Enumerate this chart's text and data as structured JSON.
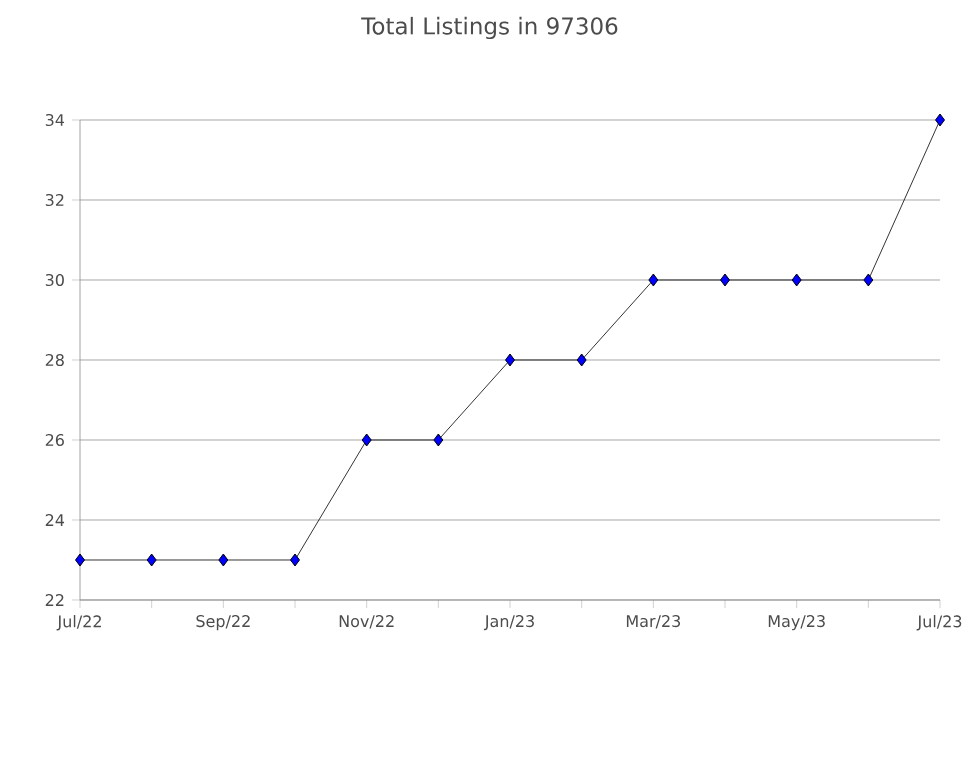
{
  "chart_data": {
    "type": "line",
    "title": "Total Listings in 97306",
    "categories": [
      "Jul/22",
      null,
      "Sep/22",
      null,
      "Nov/22",
      null,
      "Jan/23",
      null,
      "Mar/23",
      null,
      "May/23",
      null,
      "Jul/23"
    ],
    "series": [
      {
        "color": "#0000ff",
        "values": [
          23,
          23,
          23,
          23,
          26,
          26,
          28,
          28,
          30,
          30,
          30,
          30,
          34
        ]
      }
    ],
    "ylim": [
      22,
      34
    ],
    "yticks": [
      22,
      24,
      26,
      28,
      30,
      32,
      34
    ],
    "grid": "y",
    "marker": "diamond",
    "line_style": "solid"
  }
}
